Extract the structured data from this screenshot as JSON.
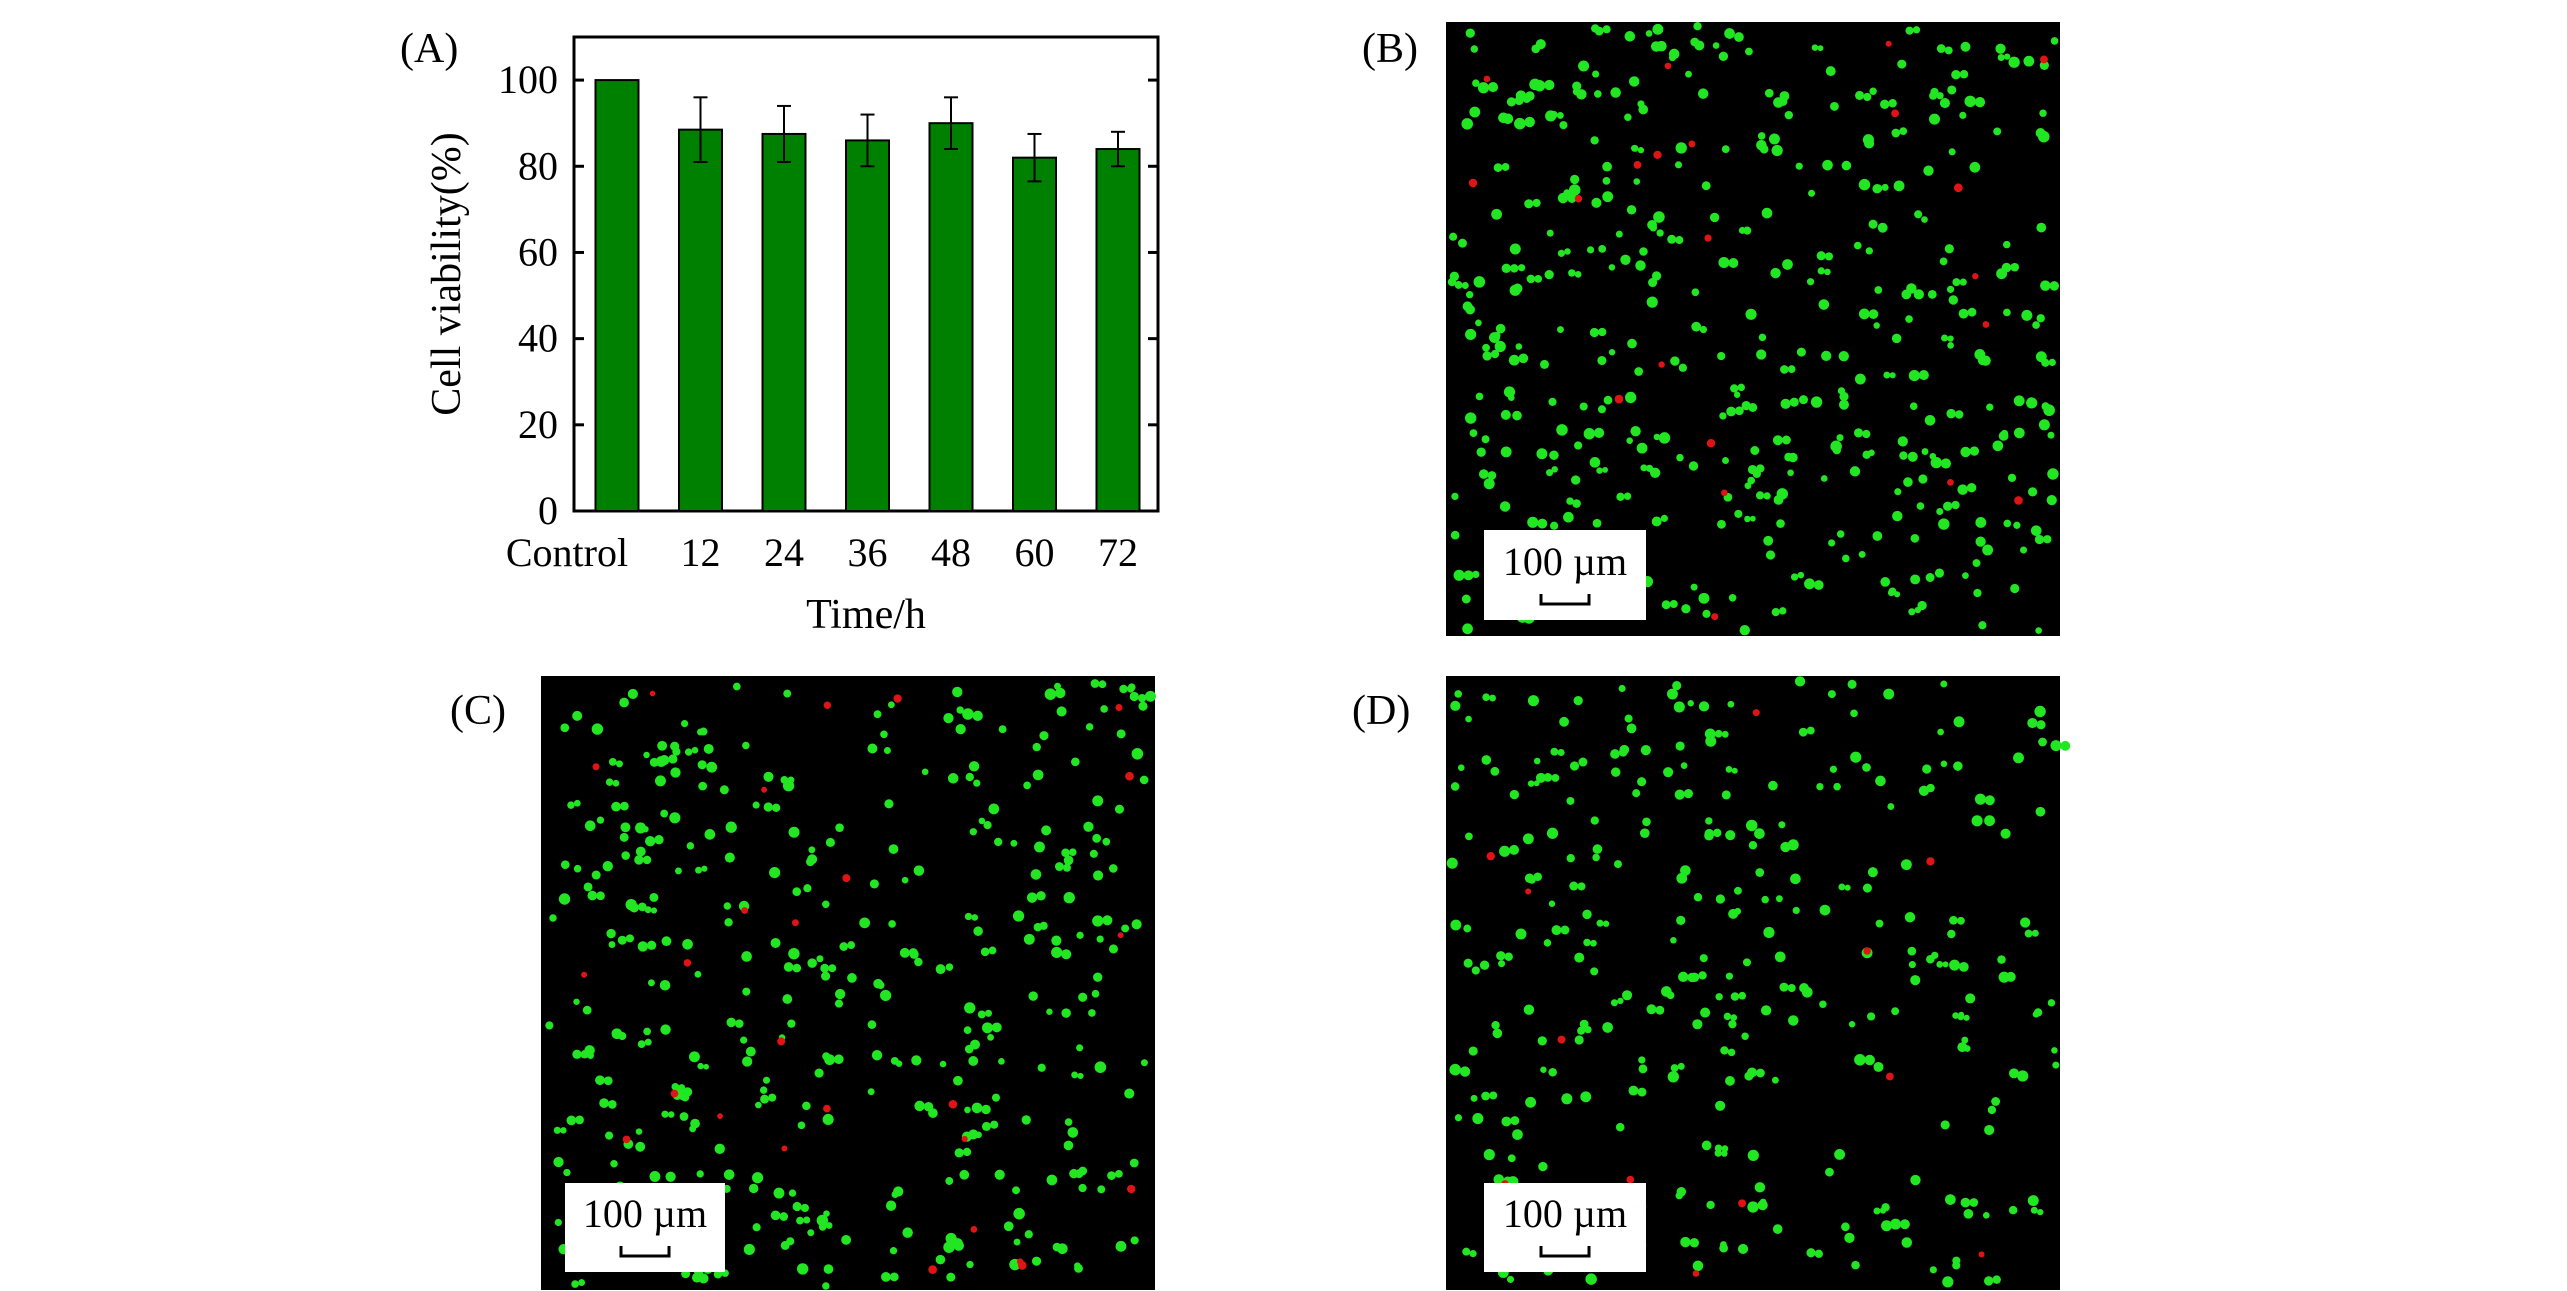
{
  "panel_labels": [
    "(A)",
    "(B)",
    "(C)",
    "(D)"
  ],
  "scale_bar_label": "100 µm",
  "colors": {
    "bar": "#008000",
    "micrograph_background": "#000000",
    "live_cells": "#22e622",
    "dead_cells": "#e01414"
  },
  "chart_data": {
    "type": "bar",
    "title": "",
    "xlabel": "Time/h",
    "ylabel": "Cell viability(%)",
    "categories": [
      "Control",
      "12",
      "24",
      "36",
      "48",
      "60",
      "72"
    ],
    "values": [
      100,
      88.5,
      87.5,
      86,
      90,
      82,
      84
    ],
    "errors": [
      0,
      7.5,
      6.5,
      6,
      6,
      5.5,
      4
    ],
    "ylim": [
      0,
      110
    ],
    "yticks": [
      0,
      20,
      40,
      60,
      80,
      100
    ],
    "grid": false,
    "legend": "none"
  },
  "micrographs": [
    {
      "panel": "(B)",
      "live_cells": 420,
      "dead_cells": 22,
      "seed": 17
    },
    {
      "panel": "(C)",
      "live_cells": 360,
      "dead_cells": 26,
      "seed": 53
    },
    {
      "panel": "(D)",
      "live_cells": 300,
      "dead_cells": 14,
      "seed": 91
    }
  ]
}
